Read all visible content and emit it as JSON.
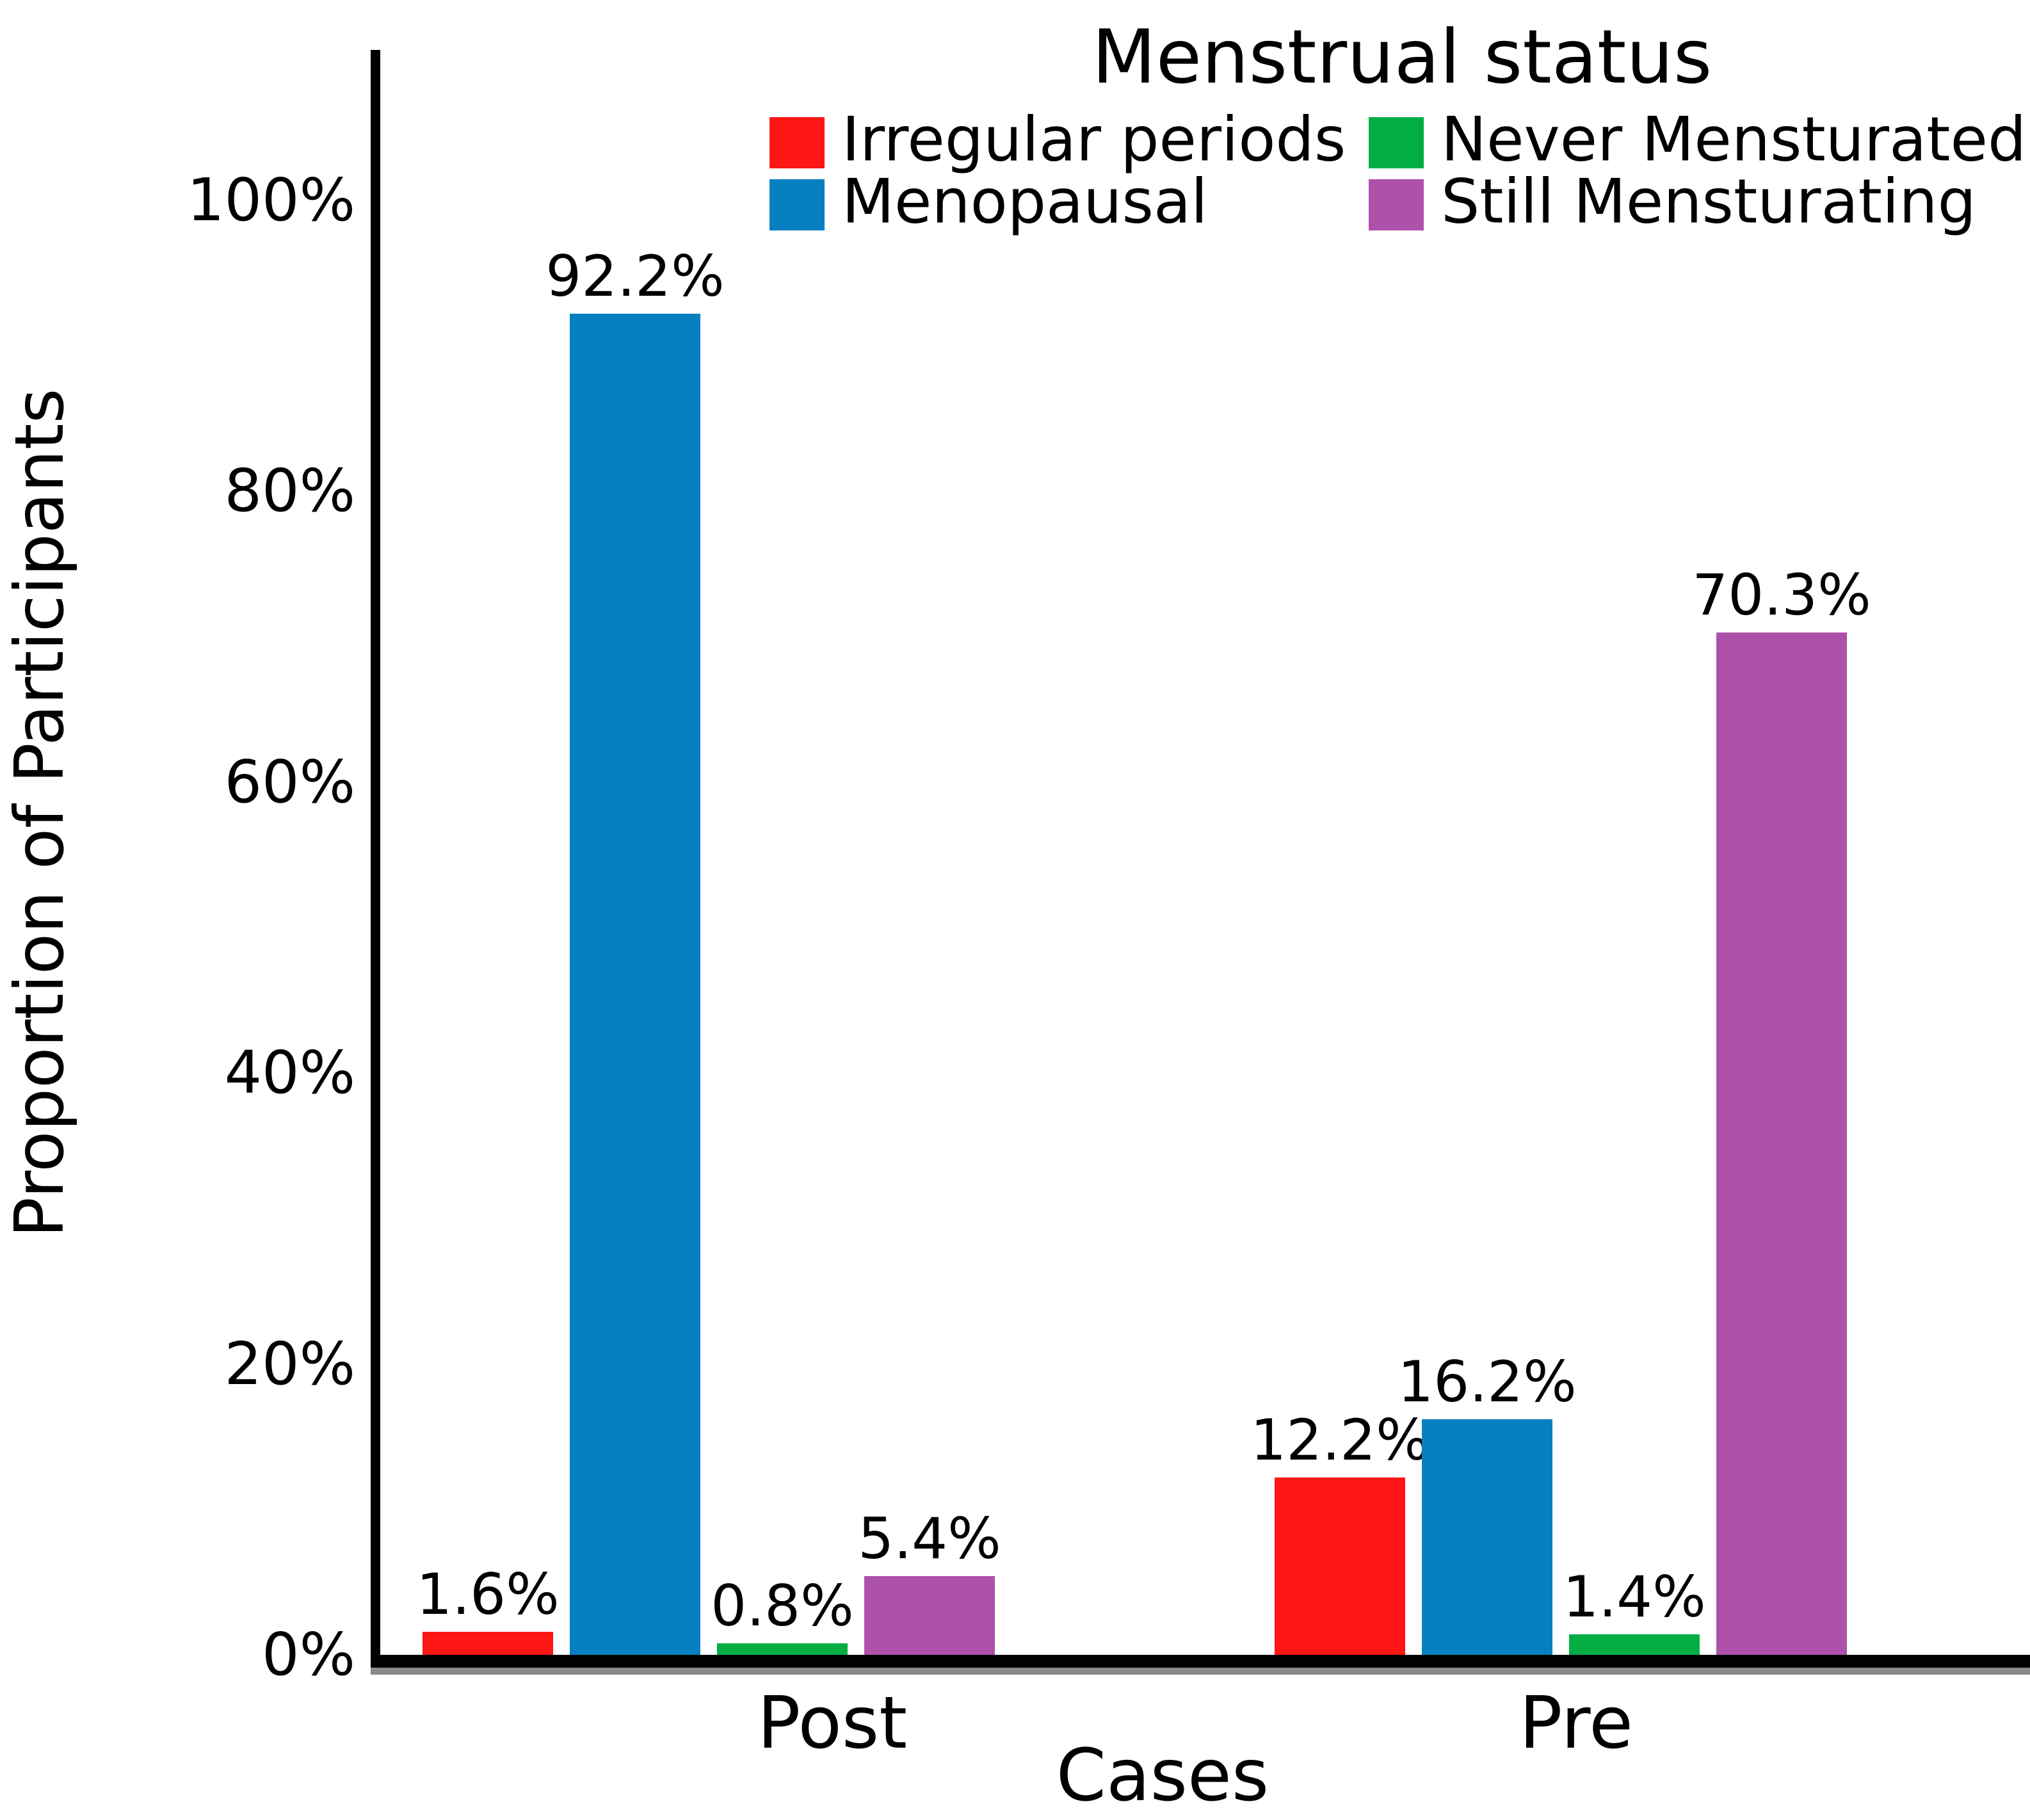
{
  "chart_data": {
    "type": "bar",
    "title": "",
    "categories": [
      "Post",
      "Pre"
    ],
    "series": [
      {
        "name": "Irregular periods",
        "color": "#fe1515",
        "values": [
          1.6,
          12.2
        ]
      },
      {
        "name": "Menopausal",
        "color": "#0680c1",
        "values": [
          92.2,
          16.2
        ]
      },
      {
        "name": "Never Mensturated",
        "color": "#02ae43",
        "values": [
          0.8,
          1.4
        ]
      },
      {
        "name": "Still Mensturating",
        "color": "#ad51ab",
        "values": [
          5.4,
          70.3
        ]
      }
    ],
    "value_labels": [
      [
        "1.6%",
        "92.2%",
        "0.8%",
        "5.4%"
      ],
      [
        "12.2%",
        "16.2%",
        "1.4%",
        "70.3%"
      ]
    ],
    "xlabel": "Cases",
    "ylabel": "Proportion of Participants",
    "y_tick_labels": [
      "0%",
      "20%",
      "40%",
      "60%",
      "80%",
      "100%"
    ],
    "ylim": [
      0,
      100
    ],
    "grid": false,
    "legend_title": "Menstrual status",
    "legend_position": "top",
    "legend_display_row_major": [
      "Irregular periods",
      "Never Mensturated",
      "Menopausal",
      "Still Mensturating"
    ]
  },
  "colors": {
    "background": "#ffffff",
    "text": "#000000",
    "axis": "#000000",
    "axis_shadow": "#8a8a8a"
  }
}
